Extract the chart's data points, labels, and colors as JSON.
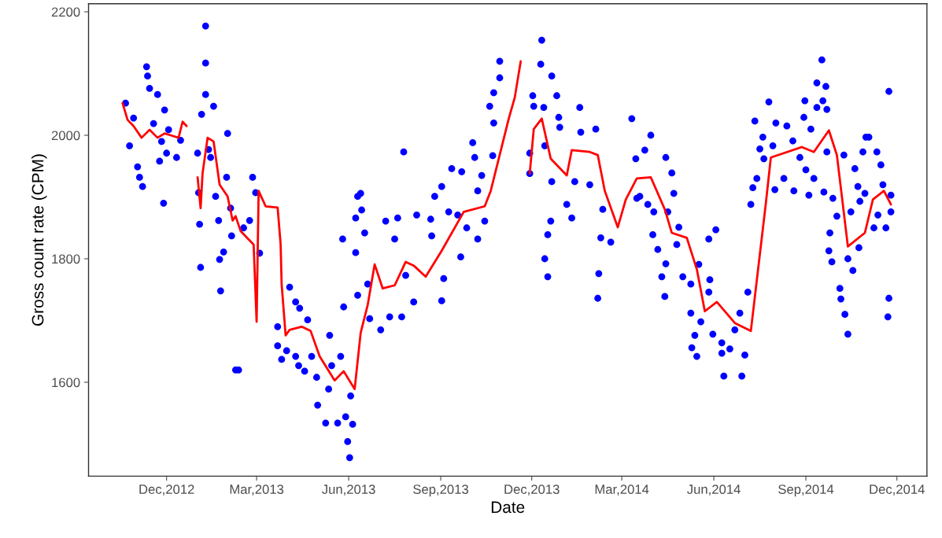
{
  "chart_data": {
    "type": "scatter",
    "xlabel": "Date",
    "ylabel": "Gross count rate (CPM)",
    "xlim": [
      "2012-09-14",
      "2014-12-31"
    ],
    "ylim": [
      1448,
      2213
    ],
    "xticks": [
      {
        "value": "2012-12-01",
        "label": "Dec,2012"
      },
      {
        "value": "2013-03-01",
        "label": "Mar,2013"
      },
      {
        "value": "2013-06-01",
        "label": "Jun,2013"
      },
      {
        "value": "2013-09-01",
        "label": "Sep,2013"
      },
      {
        "value": "2013-12-01",
        "label": "Dec,2013"
      },
      {
        "value": "2014-03-01",
        "label": "Mar,2014"
      },
      {
        "value": "2014-06-01",
        "label": "Jun,2014"
      },
      {
        "value": "2014-09-01",
        "label": "Sep,2014"
      },
      {
        "value": "2014-12-01",
        "label": "Dec,2014"
      }
    ],
    "yticks": [
      1600,
      1800,
      2000,
      2200
    ],
    "grid": false,
    "legend": false,
    "series": [
      {
        "color": "#0000ff",
        "marker": "circle",
        "x": [
          "2012-10-21",
          "2012-10-25",
          "2012-10-29",
          "2012-11-02",
          "2012-11-04",
          "2012-11-07",
          "2012-11-11",
          "2012-11-12",
          "2012-11-14",
          "2012-11-18",
          "2012-11-22",
          "2012-11-24",
          "2012-11-26",
          "2012-11-28",
          "2012-11-29",
          "2012-12-01",
          "2012-12-03",
          "2012-12-11",
          "2012-12-15",
          "2013-01-01",
          "2013-01-02",
          "2013-01-03",
          "2013-01-04",
          "2013-01-05",
          "2013-01-09",
          "2013-01-09",
          "2013-01-09",
          "2013-01-12",
          "2013-01-14",
          "2013-01-17",
          "2013-01-19",
          "2013-01-22",
          "2013-01-23",
          "2013-01-24",
          "2013-01-27",
          "2013-01-30",
          "2013-01-31",
          "2013-02-03",
          "2013-02-04",
          "2013-02-08",
          "2013-02-11",
          "2013-02-16",
          "2013-02-22",
          "2013-02-25",
          "2013-02-28",
          "2013-03-04",
          "2013-03-22",
          "2013-03-22",
          "2013-03-26",
          "2013-03-31",
          "2013-04-03",
          "2013-04-09",
          "2013-04-09",
          "2013-04-12",
          "2013-04-13",
          "2013-04-18",
          "2013-04-21",
          "2013-04-25",
          "2013-04-30",
          "2013-05-01",
          "2013-05-09",
          "2013-05-12",
          "2013-05-13",
          "2013-05-15",
          "2013-05-21",
          "2013-05-24",
          "2013-05-26",
          "2013-05-27",
          "2013-05-29",
          "2013-05-31",
          "2013-06-02",
          "2013-06-03",
          "2013-06-05",
          "2013-06-08",
          "2013-06-08",
          "2013-06-10",
          "2013-06-10",
          "2013-06-13",
          "2013-06-14",
          "2013-06-17",
          "2013-06-20",
          "2013-06-22",
          "2013-07-03",
          "2013-07-08",
          "2013-07-12",
          "2013-07-17",
          "2013-07-20",
          "2013-07-24",
          "2013-07-26",
          "2013-07-28",
          "2013-08-05",
          "2013-08-08",
          "2013-08-22",
          "2013-08-23",
          "2013-08-26",
          "2013-09-02",
          "2013-09-02",
          "2013-09-04",
          "2013-09-09",
          "2013-09-12",
          "2013-09-18",
          "2013-09-21",
          "2013-09-22",
          "2013-09-27",
          "2013-10-03",
          "2013-10-05",
          "2013-10-08",
          "2013-10-08",
          "2013-10-12",
          "2013-10-15",
          "2013-10-20",
          "2013-10-23",
          "2013-10-24",
          "2013-10-24",
          "2013-10-30",
          "2013-10-30",
          "2013-11-29",
          "2013-11-29",
          "2013-12-02",
          "2013-12-03",
          "2013-12-10",
          "2013-12-11",
          "2013-12-13",
          "2013-12-14",
          "2013-12-14",
          "2013-12-17",
          "2013-12-17",
          "2013-12-20",
          "2013-12-21",
          "2013-12-21",
          "2013-12-26",
          "2013-12-28",
          "2013-12-29",
          "2014-01-05",
          "2014-01-10",
          "2014-01-13",
          "2014-01-18",
          "2014-01-19",
          "2014-01-28",
          "2014-02-03",
          "2014-02-05",
          "2014-02-06",
          "2014-02-08",
          "2014-02-10",
          "2014-02-18",
          "2014-03-11",
          "2014-03-15",
          "2014-03-16",
          "2014-03-19",
          "2014-03-24",
          "2014-03-27",
          "2014-03-30",
          "2014-04-01",
          "2014-04-02",
          "2014-04-06",
          "2014-04-10",
          "2014-04-13",
          "2014-04-14",
          "2014-04-14",
          "2014-04-16",
          "2014-04-20",
          "2014-04-22",
          "2014-04-25",
          "2014-04-27",
          "2014-05-01",
          "2014-05-09",
          "2014-05-09",
          "2014-05-10",
          "2014-05-13",
          "2014-05-15",
          "2014-05-17",
          "2014-05-19",
          "2014-05-27",
          "2014-05-27",
          "2014-05-28",
          "2014-05-31",
          "2014-06-03",
          "2014-06-09",
          "2014-06-09",
          "2014-06-11",
          "2014-06-17",
          "2014-06-22",
          "2014-06-27",
          "2014-06-29",
          "2014-07-02",
          "2014-07-05",
          "2014-07-08",
          "2014-07-10",
          "2014-07-12",
          "2014-07-14",
          "2014-07-17",
          "2014-07-20",
          "2014-07-21",
          "2014-07-26",
          "2014-07-30",
          "2014-08-01",
          "2014-08-02",
          "2014-08-10",
          "2014-08-13",
          "2014-08-19",
          "2014-08-20",
          "2014-08-26",
          "2014-08-30",
          "2014-08-31",
          "2014-09-01",
          "2014-09-04",
          "2014-09-06",
          "2014-09-09",
          "2014-09-12",
          "2014-09-12",
          "2014-09-17",
          "2014-09-18",
          "2014-09-19",
          "2014-09-21",
          "2014-09-22",
          "2014-09-22",
          "2014-09-24",
          "2014-09-25",
          "2014-09-27",
          "2014-09-28",
          "2014-10-02",
          "2014-10-05",
          "2014-10-06",
          "2014-10-09",
          "2014-10-10",
          "2014-10-13",
          "2014-10-13",
          "2014-10-16",
          "2014-10-18",
          "2014-10-20",
          "2014-10-23",
          "2014-10-24",
          "2014-10-25",
          "2014-10-28",
          "2014-10-30",
          "2014-10-31",
          "2014-11-03",
          "2014-11-08",
          "2014-11-11",
          "2014-11-12",
          "2014-11-15",
          "2014-11-17",
          "2014-11-20",
          "2014-11-22",
          "2014-11-23",
          "2014-11-23",
          "2014-11-25",
          "2014-11-25"
        ],
        "values": [
          2052,
          1983,
          2028,
          1949,
          1932,
          1917,
          2111,
          2096,
          2076,
          2019,
          2066,
          1958,
          1990,
          1890,
          2041,
          1971,
          2009,
          1964,
          1992,
          1971,
          1907,
          1856,
          1786,
          2034,
          2177,
          2117,
          2066,
          1977,
          1964,
          2047,
          1901,
          1862,
          1799,
          1748,
          1811,
          1932,
          2003,
          1882,
          1837,
          1620,
          1620,
          1850,
          1862,
          1932,
          1907,
          1809,
          1690,
          1659,
          1637,
          1651,
          1754,
          1730,
          1642,
          1627,
          1720,
          1618,
          1701,
          1642,
          1608,
          1563,
          1534,
          1589,
          1676,
          1627,
          1534,
          1642,
          1832,
          1722,
          1544,
          1504,
          1478,
          1578,
          1532,
          1866,
          1810,
          1901,
          1741,
          1906,
          1879,
          1842,
          1759,
          1703,
          1685,
          1861,
          1706,
          1832,
          1866,
          1706,
          1973,
          1773,
          1730,
          1871,
          1864,
          1837,
          1901,
          1917,
          1732,
          1768,
          1876,
          1946,
          1871,
          1803,
          1941,
          1850,
          1988,
          1964,
          1910,
          1832,
          1935,
          1861,
          2047,
          1967,
          2069,
          2020,
          2120,
          2093,
          1938,
          1971,
          2064,
          2047,
          2115,
          2154,
          2045,
          1983,
          1800,
          1839,
          1771,
          1861,
          2096,
          1925,
          2064,
          2029,
          2013,
          1888,
          1866,
          1925,
          2045,
          2005,
          1920,
          2010,
          1736,
          1776,
          1834,
          1880,
          1827,
          2027,
          1962,
          1898,
          1901,
          1976,
          1888,
          2000,
          1839,
          1876,
          1815,
          1771,
          1739,
          1964,
          1792,
          1876,
          1939,
          1906,
          1823,
          1851,
          1771,
          1759,
          1712,
          1656,
          1676,
          1642,
          1791,
          1698,
          1832,
          1746,
          1766,
          1678,
          1847,
          1664,
          1647,
          1610,
          1654,
          1685,
          1712,
          1610,
          1644,
          1746,
          1888,
          1915,
          2023,
          1930,
          1978,
          1997,
          1962,
          2054,
          1983,
          1912,
          2020,
          1930,
          2015,
          1991,
          1910,
          1964,
          2029,
          2056,
          1944,
          1903,
          2010,
          1930,
          2045,
          2085,
          2122,
          2056,
          1908,
          2079,
          2042,
          1973,
          1813,
          1842,
          1795,
          1898,
          1869,
          1752,
          1735,
          1968,
          1710,
          1678,
          1800,
          1876,
          1781,
          1946,
          1917,
          1818,
          1893,
          1973,
          1906,
          1997,
          1997,
          1850,
          1973,
          1871,
          1952,
          1920,
          1850,
          1706,
          2071,
          1736,
          1876,
          1903
        ]
      },
      {
        "type": "line",
        "color": "#ff0000",
        "line_style": "solid",
        "marker": "none",
        "x": [
          "2012-10-18",
          "2012-10-23",
          "2012-10-29",
          "2012-11-06",
          "2012-11-14",
          "2012-11-22",
          "2012-11-29",
          "2012-12-07",
          "2012-12-13",
          "2012-12-17",
          "2012-12-21",
          "2012-12-26",
          "2013-01-01",
          "2013-01-04",
          "2013-01-06",
          "2013-01-11",
          "2013-01-17",
          "2013-01-23",
          "2013-01-31",
          "2013-02-05",
          "2013-02-08",
          "2013-02-13",
          "2013-02-26",
          "2013-03-01",
          "2013-03-03",
          "2013-03-10",
          "2013-03-22",
          "2013-03-25",
          "2013-03-26",
          "2013-03-30",
          "2013-04-03",
          "2013-04-15",
          "2013-04-24",
          "2013-05-03",
          "2013-05-18",
          "2013-05-27",
          "2013-06-07",
          "2013-06-13",
          "2013-06-20",
          "2013-06-27",
          "2013-07-05",
          "2013-07-17",
          "2013-07-28",
          "2013-08-05",
          "2013-08-17",
          "2013-09-02",
          "2013-09-24",
          "2013-10-15",
          "2013-10-21",
          "2013-11-08",
          "2013-11-14",
          "2013-11-20",
          "2013-11-25",
          "2013-11-29",
          "2013-12-03",
          "2013-12-11",
          "2013-12-20",
          "2014-01-05",
          "2014-01-10",
          "2014-01-28",
          "2014-02-05",
          "2014-02-12",
          "2014-02-25",
          "2014-03-05",
          "2014-03-16",
          "2014-03-30",
          "2014-04-13",
          "2014-04-20",
          "2014-05-05",
          "2014-05-15",
          "2014-05-23",
          "2014-06-04",
          "2014-06-22",
          "2014-07-08",
          "2014-07-23",
          "2014-07-28",
          "2014-08-28",
          "2014-09-09",
          "2014-09-24",
          "2014-10-02",
          "2014-10-13",
          "2014-10-30",
          "2014-11-07",
          "2014-11-18",
          "2014-11-25"
        ],
        "values": [
          2052,
          2025,
          2015,
          1996,
          2009,
          1996,
          2003,
          1999,
          1996,
          2022,
          2015,
          null,
          1932,
          1882,
          1939,
          1996,
          1990,
          1920,
          1901,
          1862,
          1869,
          1845,
          1823,
          1698,
          1910,
          1885,
          1883,
          1823,
          1759,
          1676,
          1685,
          1690,
          1683,
          1642,
          1603,
          1618,
          1589,
          1680,
          1725,
          1791,
          1752,
          1757,
          1795,
          1789,
          1771,
          1813,
          1876,
          1885,
          1910,
          2027,
          2061,
          2120,
          null,
          1938,
          2010,
          2027,
          1962,
          1935,
          1976,
          1973,
          1968,
          1910,
          1851,
          1896,
          1930,
          1932,
          1880,
          1842,
          1834,
          1783,
          1715,
          1730,
          1696,
          1683,
          1890,
          1964,
          1981,
          1973,
          2008,
          1968,
          1820,
          1842,
          1896,
          1910,
          1888
        ]
      }
    ]
  }
}
